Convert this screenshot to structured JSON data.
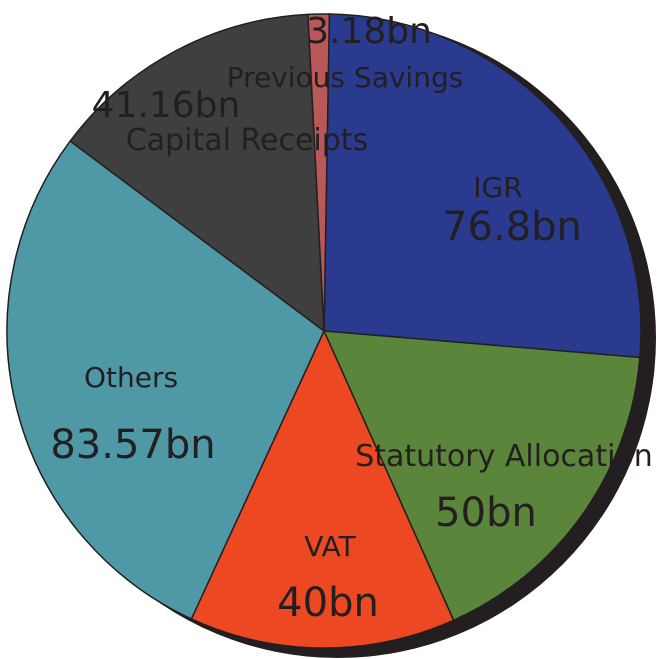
{
  "chart_data": {
    "type": "pie",
    "title": "",
    "slices": [
      {
        "label": "IGR",
        "value": 76.8,
        "value_label": "76.8bn",
        "color": "#293a8f"
      },
      {
        "label": "Statutory Allocation",
        "value": 50,
        "value_label": "50bn",
        "color": "#5b853a"
      },
      {
        "label": "VAT",
        "value": 40,
        "value_label": "40bn",
        "color": "#ec4922"
      },
      {
        "label": "Others",
        "value": 83.57,
        "value_label": "83.57bn",
        "color": "#4f98a6"
      },
      {
        "label": "Capital Receipts",
        "value": 41.16,
        "value_label": "41.16bn",
        "color": "#3f3f3f",
        "value_color": "#f07c42"
      },
      {
        "label": "Previous Savings",
        "value": 3.18,
        "value_label": "3.18bn",
        "color": "#b95858",
        "value_color": "#7fd0e8"
      }
    ],
    "legend": false
  }
}
